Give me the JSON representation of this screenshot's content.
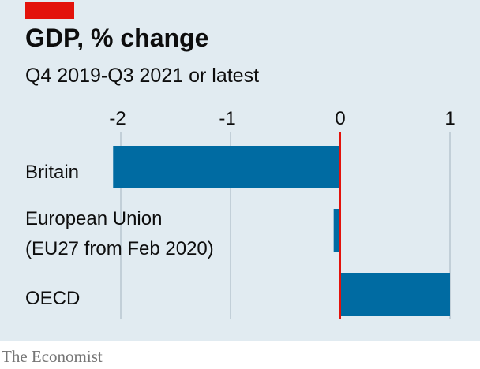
{
  "header": {
    "title": "GDP, % change",
    "subtitle": "Q4 2019-Q3 2021 or latest"
  },
  "source": "The Economist",
  "colors": {
    "background": "#e1ebf1",
    "bar": "#006ba2",
    "zero_line": "#e3120b",
    "accent_tag": "#e3120b"
  },
  "chart_data": {
    "type": "bar",
    "orientation": "horizontal",
    "title": "GDP, % change",
    "subtitle": "Q4 2019-Q3 2021 or latest",
    "categories": [
      "Britain",
      "European Union\n(EU27 from Feb 2020)",
      "OECD"
    ],
    "category_lines": [
      [
        "Britain"
      ],
      [
        "European Union",
        "(EU27 from Feb 2020)"
      ],
      [
        "OECD"
      ]
    ],
    "values": [
      -2.07,
      -0.06,
      1.0
    ],
    "xlim": [
      -2,
      1
    ],
    "ticks": [
      -2,
      -1,
      0,
      1
    ],
    "tick_labels": [
      "-2",
      "-1",
      "0",
      "1"
    ],
    "axis_position": "top",
    "grid": true,
    "legend": "none"
  }
}
